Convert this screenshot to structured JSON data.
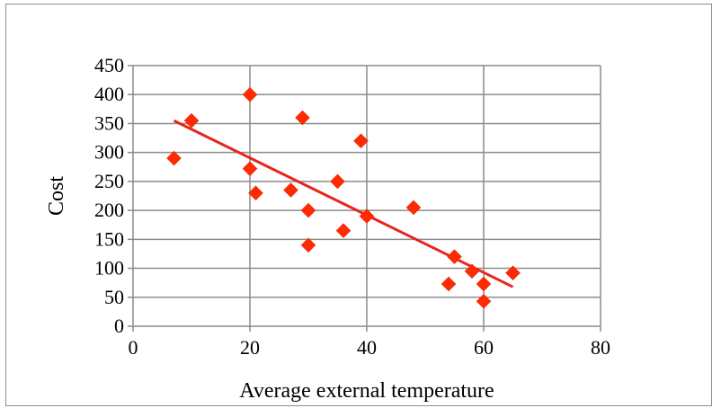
{
  "chart_data": {
    "type": "scatter",
    "title": "",
    "xlabel": "Average external temperature",
    "ylabel": "Cost",
    "xlim": [
      0,
      80
    ],
    "ylim": [
      0,
      450
    ],
    "xticks": [
      0,
      20,
      40,
      60,
      80
    ],
    "yticks": [
      0,
      50,
      100,
      150,
      200,
      250,
      300,
      350,
      400,
      450
    ],
    "grid": true,
    "legend": "none",
    "marker_color": "#ff2a00",
    "trendline_color": "#e8251f",
    "series": [
      {
        "name": "Cost",
        "points": [
          {
            "x": 7,
            "y": 290
          },
          {
            "x": 10,
            "y": 355
          },
          {
            "x": 20,
            "y": 400
          },
          {
            "x": 20,
            "y": 272
          },
          {
            "x": 21,
            "y": 230
          },
          {
            "x": 27,
            "y": 235
          },
          {
            "x": 29,
            "y": 360
          },
          {
            "x": 30,
            "y": 200
          },
          {
            "x": 30,
            "y": 140
          },
          {
            "x": 35,
            "y": 250
          },
          {
            "x": 36,
            "y": 165
          },
          {
            "x": 39,
            "y": 320
          },
          {
            "x": 40,
            "y": 190
          },
          {
            "x": 48,
            "y": 205
          },
          {
            "x": 54,
            "y": 73
          },
          {
            "x": 55,
            "y": 120
          },
          {
            "x": 58,
            "y": 95
          },
          {
            "x": 60,
            "y": 73
          },
          {
            "x": 60,
            "y": 43
          },
          {
            "x": 65,
            "y": 92
          }
        ]
      }
    ],
    "trendline": {
      "type": "linear",
      "x_start": 7,
      "y_start": 355,
      "x_end": 65,
      "y_end": 68
    }
  }
}
